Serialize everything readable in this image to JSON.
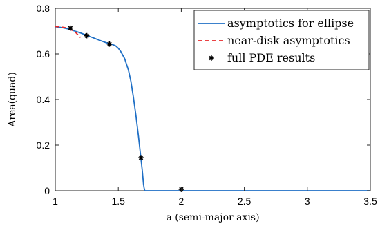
{
  "chart_data": {
    "type": "line",
    "xlabel": "a (semi-major axis)",
    "ylabel": "Area(quad)",
    "xlim": [
      1,
      3.5
    ],
    "ylim": [
      0,
      0.8
    ],
    "x_ticks": [
      "1",
      "1.5",
      "2",
      "2.5",
      "3",
      "3.5"
    ],
    "y_ticks": [
      "0",
      "0.2",
      "0.4",
      "0.6",
      "0.8"
    ],
    "grid": false,
    "legend_position": "top-right",
    "series": [
      {
        "name": "asymptotics for ellipse",
        "style": "solid-line",
        "color": "#1f6fc5",
        "x": [
          1.0,
          1.05,
          1.1,
          1.15,
          1.2,
          1.25,
          1.3,
          1.35,
          1.4,
          1.45,
          1.48,
          1.5,
          1.52,
          1.55,
          1.58,
          1.6,
          1.62,
          1.64,
          1.66,
          1.68,
          1.69,
          1.7,
          1.705,
          1.71,
          1.72,
          2.0,
          2.5,
          3.0,
          3.5
        ],
        "y": [
          0.719,
          0.716,
          0.71,
          0.701,
          0.692,
          0.681,
          0.671,
          0.66,
          0.65,
          0.642,
          0.635,
          0.625,
          0.61,
          0.58,
          0.53,
          0.48,
          0.41,
          0.33,
          0.24,
          0.14,
          0.09,
          0.03,
          0.012,
          0.0,
          0.0,
          0.0,
          0.0,
          0.0,
          0.0
        ]
      },
      {
        "name": "near-disk asymptotics",
        "style": "dashed-line",
        "color": "#e8282a",
        "x": [
          1.0,
          1.04,
          1.08,
          1.12,
          1.16,
          1.2
        ],
        "y": [
          0.72,
          0.719,
          0.715,
          0.708,
          0.695,
          0.672
        ]
      },
      {
        "name": "full PDE results",
        "style": "markers",
        "color": "#000000",
        "x": [
          1.12,
          1.25,
          1.43,
          1.68,
          2.0
        ],
        "y": [
          0.713,
          0.68,
          0.643,
          0.145,
          0.006
        ]
      }
    ]
  }
}
